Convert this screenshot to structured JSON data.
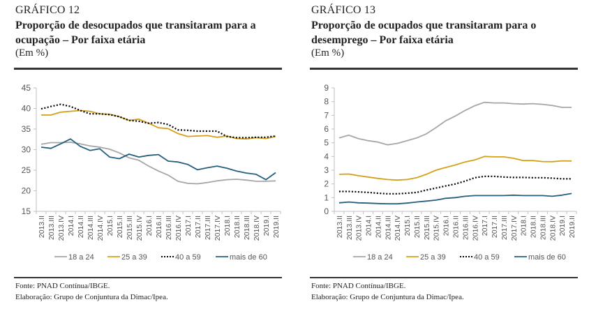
{
  "chart_data": [
    {
      "type": "line",
      "label": "GRÁFICO 12",
      "title": "Proporção de desocupados que transitaram para a ocupação – Por faixa etária",
      "unit": "(Em %)",
      "xlabel": "",
      "ylabel": "",
      "ylim": [
        15,
        45
      ],
      "yticks": [
        15,
        20,
        25,
        30,
        35,
        40,
        45
      ],
      "grid": false,
      "legend": "bottom",
      "categories": [
        "2013.II",
        "2013.III",
        "2013.IV",
        "2014.I",
        "2014.II",
        "2014.III",
        "2014.IV",
        "2015.I",
        "2015.II",
        "2015.III",
        "2015.IV",
        "2016.I",
        "2016.II",
        "2016.III",
        "2016.IV",
        "2017.I",
        "2017.II",
        "2017.III",
        "2017.IV",
        "2018.I",
        "2018.II",
        "2018.III",
        "2018.IV",
        "2019.I",
        "2019.II"
      ],
      "series": [
        {
          "name": "18 a 24",
          "color": "#a6a6a6",
          "style": "solid",
          "values": [
            31.3,
            31.7,
            31.7,
            31.8,
            31.4,
            30.9,
            30.6,
            30.1,
            29.2,
            28.0,
            27.4,
            26.0,
            24.8,
            23.8,
            22.3,
            21.8,
            21.7,
            22.0,
            22.4,
            22.7,
            22.8,
            22.6,
            22.3,
            22.3,
            22.4
          ]
        },
        {
          "name": "25 a 39",
          "color": "#d4a017",
          "style": "solid",
          "values": [
            38.4,
            38.4,
            39.1,
            39.3,
            39.5,
            39.3,
            38.7,
            38.6,
            38.0,
            37.1,
            37.4,
            36.4,
            35.3,
            35.1,
            33.9,
            33.2,
            33.3,
            33.4,
            33.0,
            33.3,
            32.7,
            32.6,
            32.9,
            32.7,
            33.2
          ]
        },
        {
          "name": "40 a 59",
          "color": "#000000",
          "style": "dotted",
          "values": [
            39.9,
            40.5,
            41.0,
            40.5,
            39.5,
            38.7,
            38.7,
            38.5,
            38.0,
            37.1,
            36.9,
            36.4,
            36.6,
            36.1,
            34.8,
            34.7,
            34.5,
            34.5,
            34.5,
            33.2,
            32.9,
            32.9,
            33.0,
            33.0,
            33.3
          ]
        },
        {
          "name": "mais de 60",
          "color": "#245f7e",
          "style": "solid",
          "values": [
            30.6,
            30.3,
            31.4,
            32.6,
            30.8,
            29.8,
            30.2,
            28.2,
            27.8,
            28.9,
            28.2,
            28.6,
            28.8,
            27.2,
            27.0,
            26.4,
            25.1,
            25.6,
            26.0,
            25.5,
            24.8,
            24.3,
            24.0,
            22.7,
            24.4
          ]
        }
      ],
      "source": "Fonte: PNAD Contínua/IBGE.",
      "elaboration": "Elaboração: Grupo de Conjuntura da Dimac/Ipea."
    },
    {
      "type": "line",
      "label": "GRÁFICO 13",
      "title": "Proporção de ocupados que transitaram para o desemprego – Por faixa etária",
      "unit": "(Em %)",
      "xlabel": "",
      "ylabel": "",
      "ylim": [
        0,
        9
      ],
      "yticks": [
        0,
        1,
        2,
        3,
        4,
        5,
        6,
        7,
        8,
        9
      ],
      "grid": false,
      "legend": "bottom",
      "categories": [
        "2013.II",
        "2013.III",
        "2013.IV",
        "2014.I",
        "2014.II",
        "2014.III",
        "2014.IV",
        "2015.I",
        "2015.II",
        "2015.III",
        "2015.IV",
        "2016.I",
        "2016.II",
        "2016.III",
        "2016.IV",
        "2017.I",
        "2017.II",
        "2017.III",
        "2017.IV",
        "2018.I",
        "2018.II",
        "2018.III",
        "2018.IV",
        "2019.I",
        "2019.II"
      ],
      "series": [
        {
          "name": "18 a 24",
          "color": "#a6a6a6",
          "style": "solid",
          "values": [
            5.35,
            5.55,
            5.3,
            5.15,
            5.05,
            4.85,
            4.95,
            5.15,
            5.35,
            5.65,
            6.1,
            6.6,
            6.95,
            7.35,
            7.7,
            7.95,
            7.9,
            7.9,
            7.85,
            7.82,
            7.85,
            7.8,
            7.72,
            7.58,
            7.58
          ]
        },
        {
          "name": "25 a 39",
          "color": "#d4a017",
          "style": "solid",
          "values": [
            2.7,
            2.72,
            2.6,
            2.5,
            2.4,
            2.32,
            2.28,
            2.32,
            2.45,
            2.7,
            3.0,
            3.2,
            3.38,
            3.6,
            3.75,
            4.0,
            3.97,
            3.97,
            3.87,
            3.7,
            3.7,
            3.63,
            3.62,
            3.68,
            3.67
          ]
        },
        {
          "name": "40 a 59",
          "color": "#000000",
          "style": "dotted",
          "values": [
            1.45,
            1.45,
            1.42,
            1.38,
            1.32,
            1.28,
            1.28,
            1.32,
            1.38,
            1.55,
            1.7,
            1.85,
            2.0,
            2.2,
            2.45,
            2.55,
            2.55,
            2.5,
            2.47,
            2.47,
            2.45,
            2.45,
            2.42,
            2.37,
            2.37
          ]
        },
        {
          "name": "mais de 60",
          "color": "#245f7e",
          "style": "solid",
          "values": [
            0.62,
            0.68,
            0.62,
            0.6,
            0.57,
            0.55,
            0.55,
            0.6,
            0.68,
            0.75,
            0.82,
            0.95,
            1.0,
            1.1,
            1.15,
            1.15,
            1.15,
            1.15,
            1.18,
            1.15,
            1.15,
            1.15,
            1.1,
            1.18,
            1.3
          ]
        }
      ],
      "source": "Fonte: PNAD Contínua/IBGE.",
      "elaboration": "Elaboração: Grupo de Conjuntura da Dimac/Ipea."
    }
  ]
}
